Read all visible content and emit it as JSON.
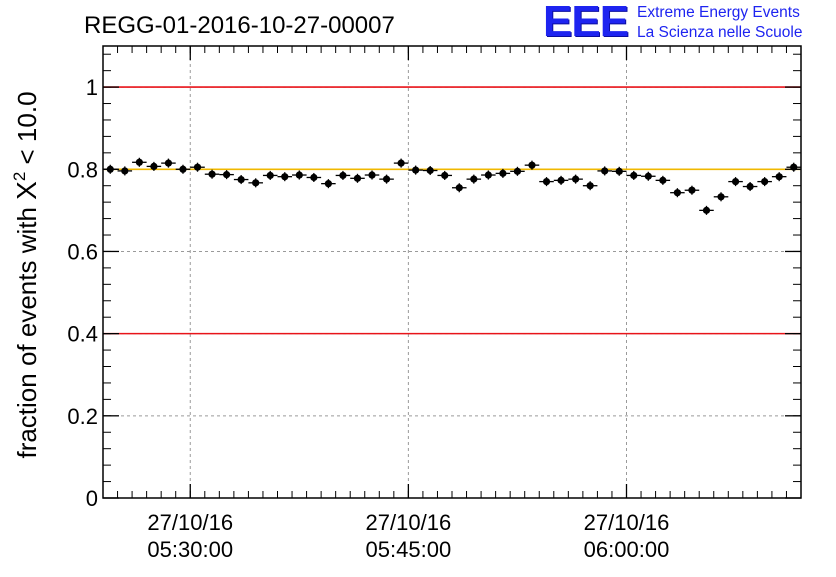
{
  "title": "REGG-01-2016-10-27-00007",
  "logo": {
    "mark": "EEE",
    "line1": "Extreme Energy Events",
    "line2": "La Scienza nelle Scuole",
    "color": "#1e24f0"
  },
  "chart_data": {
    "type": "scatter",
    "title": "REGG-01-2016-10-27-00007",
    "xlabel": "",
    "ylabel_parts": {
      "prefix": "fraction of events with ",
      "symbol": "X",
      "sup": "2",
      "suffix": " < 10.0"
    },
    "ylim": [
      0,
      1.1
    ],
    "xlim_minutes": [
      0,
      48
    ],
    "yticks": [
      {
        "value": 0,
        "label": "0"
      },
      {
        "value": 0.2,
        "label": "0.2"
      },
      {
        "value": 0.4,
        "label": "0.4"
      },
      {
        "value": 0.6,
        "label": "0.6"
      },
      {
        "value": 0.8,
        "label": "0.8"
      },
      {
        "value": 1.0,
        "label": "1"
      }
    ],
    "xticks": [
      {
        "minute": 6,
        "date": "27/10/16",
        "time": "05:30:00"
      },
      {
        "minute": 21,
        "date": "27/10/16",
        "time": "05:45:00"
      },
      {
        "minute": 36,
        "date": "27/10/16",
        "time": "06:00:00"
      }
    ],
    "grid": true,
    "reference_lines": [
      {
        "y": 1.0,
        "color": "#e8141a"
      },
      {
        "y": 0.4,
        "color": "#e8141a"
      },
      {
        "y": 0.8,
        "color": "#f0b800"
      }
    ],
    "marker_color": "#000000",
    "points": [
      {
        "x": 0.5,
        "y": 0.8
      },
      {
        "x": 1.5,
        "y": 0.796
      },
      {
        "x": 2.5,
        "y": 0.817
      },
      {
        "x": 3.5,
        "y": 0.807
      },
      {
        "x": 4.5,
        "y": 0.815
      },
      {
        "x": 5.5,
        "y": 0.8
      },
      {
        "x": 6.5,
        "y": 0.805
      },
      {
        "x": 7.5,
        "y": 0.788
      },
      {
        "x": 8.5,
        "y": 0.787
      },
      {
        "x": 9.5,
        "y": 0.775
      },
      {
        "x": 10.5,
        "y": 0.767
      },
      {
        "x": 11.5,
        "y": 0.785
      },
      {
        "x": 12.5,
        "y": 0.782
      },
      {
        "x": 13.5,
        "y": 0.786
      },
      {
        "x": 14.5,
        "y": 0.78
      },
      {
        "x": 15.5,
        "y": 0.765
      },
      {
        "x": 16.5,
        "y": 0.785
      },
      {
        "x": 17.5,
        "y": 0.778
      },
      {
        "x": 18.5,
        "y": 0.786
      },
      {
        "x": 19.5,
        "y": 0.776
      },
      {
        "x": 20.5,
        "y": 0.815
      },
      {
        "x": 21.5,
        "y": 0.798
      },
      {
        "x": 22.5,
        "y": 0.797
      },
      {
        "x": 23.5,
        "y": 0.785
      },
      {
        "x": 24.5,
        "y": 0.755
      },
      {
        "x": 25.5,
        "y": 0.776
      },
      {
        "x": 26.5,
        "y": 0.786
      },
      {
        "x": 27.5,
        "y": 0.79
      },
      {
        "x": 28.5,
        "y": 0.795
      },
      {
        "x": 29.5,
        "y": 0.81
      },
      {
        "x": 30.5,
        "y": 0.77
      },
      {
        "x": 31.5,
        "y": 0.773
      },
      {
        "x": 32.5,
        "y": 0.776
      },
      {
        "x": 33.5,
        "y": 0.76
      },
      {
        "x": 34.5,
        "y": 0.796
      },
      {
        "x": 35.5,
        "y": 0.795
      },
      {
        "x": 36.5,
        "y": 0.785
      },
      {
        "x": 37.5,
        "y": 0.783
      },
      {
        "x": 38.5,
        "y": 0.773
      },
      {
        "x": 39.5,
        "y": 0.743
      },
      {
        "x": 40.5,
        "y": 0.749
      },
      {
        "x": 41.5,
        "y": 0.7
      },
      {
        "x": 42.5,
        "y": 0.733
      },
      {
        "x": 43.5,
        "y": 0.77
      },
      {
        "x": 44.5,
        "y": 0.758
      },
      {
        "x": 45.5,
        "y": 0.77
      },
      {
        "x": 46.5,
        "y": 0.782
      },
      {
        "x": 47.5,
        "y": 0.805
      }
    ],
    "y_error": 0.011
  }
}
